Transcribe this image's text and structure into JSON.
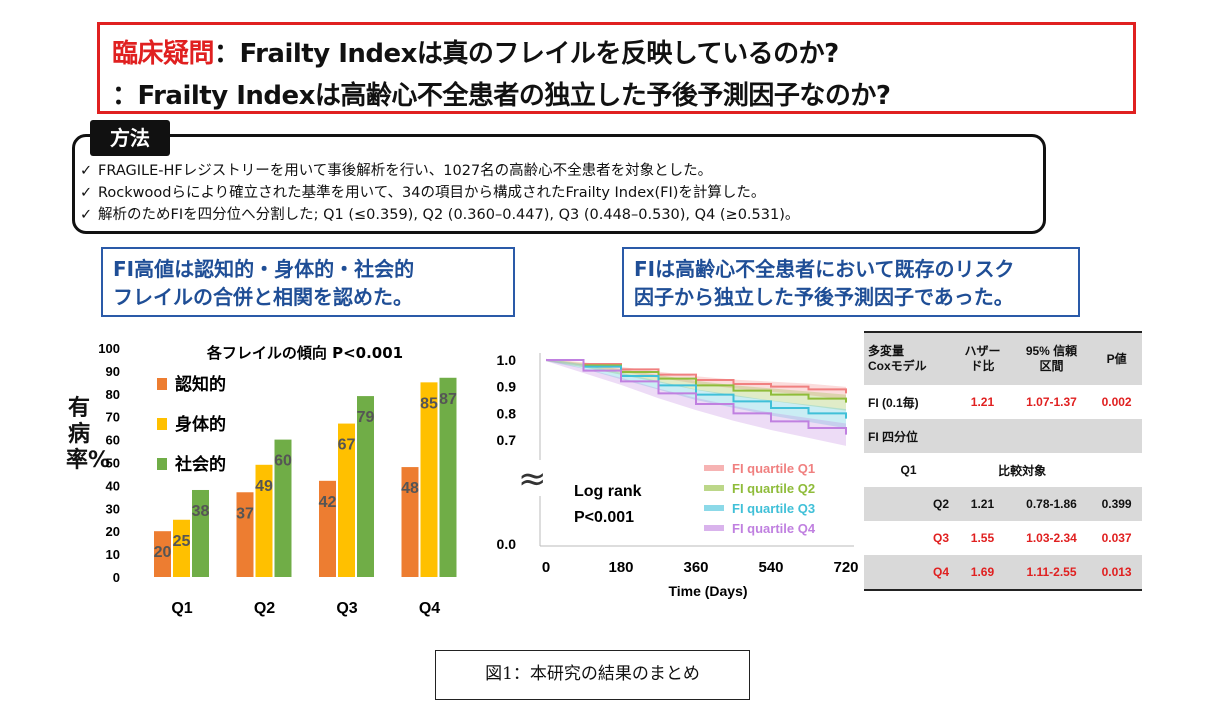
{
  "clinical_question": {
    "label": "臨床疑問",
    "line1": "：Frailty Indexは真のフレイルを反映しているのか?",
    "line2": "：Frailty Indexは高齢心不全患者の独立した予後予測因子なのか?"
  },
  "methods": {
    "title": "方法",
    "check": "✓",
    "items": [
      "FRAGILE-HFレジストリーを用いて事後解析を行い、1027名の高齢心不全患者を対象とした。",
      "Rockwoodらにより確立された基準を用いて、34の項目から構成されたFrailty Index(FI)を計算した。",
      "解析のためFIを四分位へ分割した; Q1 (≤0.359), Q2 (0.360–0.447), Q3 (0.448–0.530), Q4 (≥0.531)。"
    ]
  },
  "findings": {
    "left_line1": "FI高値は認知的・身体的・社会的",
    "left_line2": "フレイルの合併と相関を認めた。",
    "right_line1": "FIは高齢心不全患者において既存のリスク",
    "right_line2": "因子から独立した予後予測因子であった。"
  },
  "bar_ylabel": "有病率%",
  "colors": {
    "cognitive": "#ed7d31",
    "physical": "#ffc000",
    "social": "#70ad47",
    "red": "#e02020",
    "blue": "#2a5aa8"
  },
  "chart_data": [
    {
      "type": "bar",
      "title": "各フレイルの傾向 P<0.001",
      "categories": [
        "Q1",
        "Q2",
        "Q3",
        "Q4"
      ],
      "series": [
        {
          "name": "認知的",
          "values": [
            20,
            37,
            42,
            48
          ]
        },
        {
          "name": "身体的",
          "values": [
            25,
            49,
            67,
            85
          ]
        },
        {
          "name": "社会的",
          "values": [
            38,
            60,
            79,
            87
          ]
        }
      ],
      "ylabel": "有病率%",
      "ylim": [
        0,
        100
      ],
      "yticks": [
        0,
        10,
        20,
        30,
        40,
        50,
        60,
        70,
        80,
        90,
        100
      ],
      "legend": "top-left"
    },
    {
      "type": "line",
      "title": "",
      "xlabel": "Time (Days)",
      "xticks": [
        0,
        180,
        360,
        540,
        720
      ],
      "yticks": [
        "0.0",
        "0.7",
        "0.8",
        "0.9",
        "1.0"
      ],
      "annotation_line1": "Log rank",
      "annotation_line2": "P<0.001",
      "break_symbol": "≈",
      "series": [
        {
          "name": "FI quartile Q1",
          "color": "#f08080",
          "x": [
            0,
            90,
            180,
            270,
            360,
            450,
            540,
            630,
            720
          ],
          "y": [
            1.0,
            0.985,
            0.965,
            0.945,
            0.925,
            0.91,
            0.9,
            0.89,
            0.875
          ]
        },
        {
          "name": "FI quartile Q2",
          "color": "#8fbc3a",
          "x": [
            0,
            90,
            180,
            270,
            360,
            450,
            540,
            630,
            720
          ],
          "y": [
            1.0,
            0.98,
            0.955,
            0.93,
            0.905,
            0.885,
            0.87,
            0.855,
            0.84
          ]
        },
        {
          "name": "FI quartile Q3",
          "color": "#40c0d8",
          "x": [
            0,
            90,
            180,
            270,
            360,
            450,
            540,
            630,
            720
          ],
          "y": [
            1.0,
            0.975,
            0.94,
            0.905,
            0.87,
            0.845,
            0.82,
            0.8,
            0.78
          ]
        },
        {
          "name": "FI quartile Q4",
          "color": "#c080e0",
          "x": [
            0,
            90,
            180,
            270,
            360,
            450,
            540,
            630,
            720
          ],
          "y": [
            1.0,
            0.96,
            0.92,
            0.875,
            0.835,
            0.8,
            0.77,
            0.745,
            0.72
          ]
        }
      ]
    }
  ],
  "cox_table": {
    "headers": [
      "多変量\nCoxモデル",
      "ハザー\nド比",
      "95% 信頼\n区間",
      "P値"
    ],
    "fi_row": [
      "FI (0.1毎)",
      "1.21",
      "1.07-1.37",
      "0.002"
    ],
    "quartile_label": "FI 四分位",
    "q1_row": [
      "Q1",
      "比較対象"
    ],
    "q2_row": [
      "Q2",
      "1.21",
      "0.78-1.86",
      "0.399"
    ],
    "q3_row": [
      "Q3",
      "1.55",
      "1.03-2.34",
      "0.037"
    ],
    "q4_row": [
      "Q4",
      "1.69",
      "1.11-2.55",
      "0.013"
    ]
  },
  "caption": "図1：本研究の結果のまとめ"
}
